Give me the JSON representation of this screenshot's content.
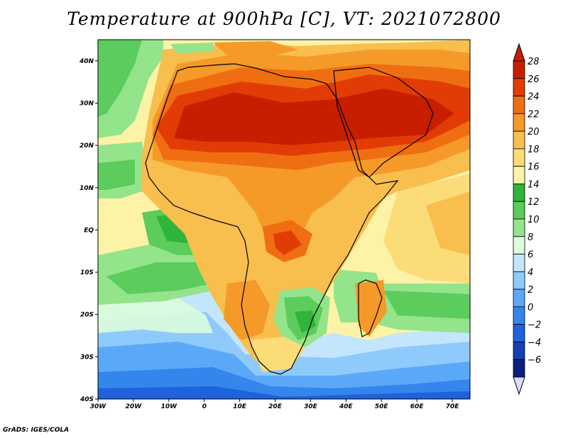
{
  "title": "Temperature at 900hPa [C], VT: 2021072800",
  "credit": "GrADS: IGES/COLA",
  "map": {
    "lon_range": [
      -30,
      75
    ],
    "lat_range": [
      -40,
      45
    ],
    "lat_ticks": [
      {
        "value": 40,
        "label": "40N"
      },
      {
        "value": 30,
        "label": "30N"
      },
      {
        "value": 20,
        "label": "20N"
      },
      {
        "value": 10,
        "label": "10N"
      },
      {
        "value": 0,
        "label": "EQ"
      },
      {
        "value": -10,
        "label": "10S"
      },
      {
        "value": -20,
        "label": "20S"
      },
      {
        "value": -30,
        "label": "30S"
      },
      {
        "value": -40,
        "label": "40S"
      }
    ],
    "lon_ticks": [
      {
        "value": -30,
        "label": "30W"
      },
      {
        "value": -20,
        "label": "20W"
      },
      {
        "value": -10,
        "label": "10W"
      },
      {
        "value": 0,
        "label": "0"
      },
      {
        "value": 10,
        "label": "10E"
      },
      {
        "value": 20,
        "label": "20E"
      },
      {
        "value": 30,
        "label": "30E"
      },
      {
        "value": 40,
        "label": "40E"
      },
      {
        "value": 50,
        "label": "50E"
      },
      {
        "value": 60,
        "label": "60E"
      },
      {
        "value": 70,
        "label": "70E"
      }
    ]
  },
  "colorbar": {
    "levels": [
      {
        "label": "28",
        "value": 28,
        "color": "#c81e00"
      },
      {
        "label": "26",
        "value": 26,
        "color": "#e23c06"
      },
      {
        "label": "24",
        "value": 24,
        "color": "#f06e12"
      },
      {
        "label": "22",
        "value": 22,
        "color": "#f59a28"
      },
      {
        "label": "20",
        "value": 20,
        "color": "#f8be4e"
      },
      {
        "label": "18",
        "value": 18,
        "color": "#fbdc78"
      },
      {
        "label": "16",
        "value": 16,
        "color": "#fdf3a6"
      },
      {
        "label": "14",
        "value": 14,
        "color": "#2eb53a"
      },
      {
        "label": "12",
        "value": 12,
        "color": "#5ccc5c"
      },
      {
        "label": "10",
        "value": 10,
        "color": "#94e48c"
      },
      {
        "label": "8",
        "value": 8,
        "color": "#dcfcdc"
      },
      {
        "label": "6",
        "value": 6,
        "color": "#c4e6fc"
      },
      {
        "label": "4",
        "value": 4,
        "color": "#8ecafc"
      },
      {
        "label": "2",
        "value": 2,
        "color": "#5ca8f8"
      },
      {
        "label": "0",
        "value": 0,
        "color": "#3486ec"
      },
      {
        "label": "−2",
        "value": -2,
        "color": "#1e62dc"
      },
      {
        "label": "−4",
        "value": -4,
        "color": "#1440b4"
      },
      {
        "label": "−6",
        "value": -6,
        "color": "#0c1f82"
      }
    ],
    "over_color": "#c81e00",
    "under_color": "#dcdcfc"
  }
}
